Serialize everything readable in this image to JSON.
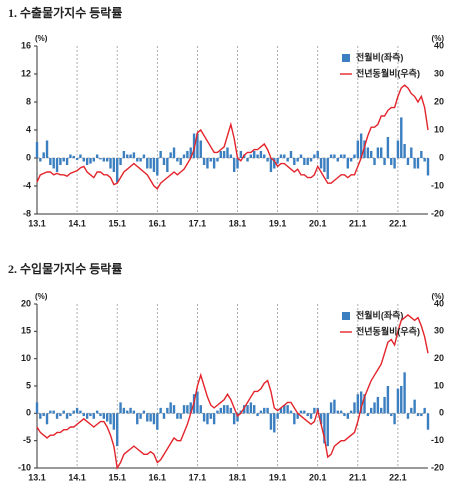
{
  "chart_data": [
    {
      "type": "bar",
      "title": "1. 수출물가지수 등락률",
      "y_unit": "(%)",
      "y2_unit": "(%)",
      "ylim": [
        -8,
        16
      ],
      "yticks": [
        -8,
        -4,
        0,
        4,
        8,
        12,
        16
      ],
      "y2lim": [
        -20,
        40
      ],
      "y2ticks": [
        -20,
        -10,
        0,
        10,
        20,
        30,
        40
      ],
      "legend": "top-right",
      "categories": [
        "13.1",
        null,
        null,
        null,
        null,
        null,
        null,
        null,
        null,
        null,
        null,
        null,
        "14.1",
        null,
        null,
        null,
        null,
        null,
        null,
        null,
        null,
        null,
        null,
        null,
        "15.1",
        null,
        null,
        null,
        null,
        null,
        null,
        null,
        null,
        null,
        null,
        null,
        "16.1",
        null,
        null,
        null,
        null,
        null,
        null,
        null,
        null,
        null,
        null,
        null,
        "17.1",
        null,
        null,
        null,
        null,
        null,
        null,
        null,
        null,
        null,
        null,
        null,
        "18.1",
        null,
        null,
        null,
        null,
        null,
        null,
        null,
        null,
        null,
        null,
        null,
        "19.1",
        null,
        null,
        null,
        null,
        null,
        null,
        null,
        null,
        null,
        null,
        null,
        "20.1",
        null,
        null,
        null,
        null,
        null,
        null,
        null,
        null,
        null,
        null,
        null,
        "21.1",
        null,
        null,
        null,
        null,
        null,
        null,
        null,
        null,
        null,
        null,
        null,
        "22.1",
        null,
        null,
        null,
        null,
        null,
        null,
        null,
        null,
        null
      ],
      "series": [
        {
          "name": "전월비(좌측)",
          "type": "bar",
          "color": "#3b7fc0",
          "values": [
            2.3,
            -0.5,
            0.8,
            2.5,
            -1,
            -1.5,
            -2,
            -1,
            -0.5,
            -1,
            0.5,
            0.3,
            -0.3,
            0.5,
            -0.5,
            -1,
            -0.8,
            -0.5,
            0.5,
            -0.2,
            -0.5,
            -0.5,
            -1.5,
            -2,
            -3.5,
            -1,
            1,
            0.5,
            0.5,
            0.8,
            -0.5,
            -0.5,
            0.5,
            -1.5,
            -1.5,
            -2,
            -2.5,
            1,
            -1,
            -2,
            0.8,
            1.5,
            -0.5,
            -1,
            0.5,
            1,
            1.5,
            3.5,
            3.5,
            2.5,
            -1,
            -1.5,
            -0.5,
            -1.5,
            -0.5,
            1,
            1,
            1.5,
            0.5,
            -2,
            -1.5,
            1,
            0.5,
            -0.5,
            0.5,
            1,
            0.5,
            1,
            0.5,
            -0.5,
            -2,
            -1.5,
            -0.8,
            0.5,
            0.5,
            -0.5,
            1,
            -1,
            -0.5,
            0.5,
            -1,
            -1,
            -0.5,
            0.5,
            1,
            -1.5,
            -2,
            -3,
            0.5,
            0.5,
            -0.5,
            0.5,
            0.5,
            -1.5,
            -0.5,
            0.5,
            2.5,
            3.5,
            2.5,
            1.5,
            1,
            -1,
            1.5,
            1.5,
            -1,
            3,
            -1,
            -1.5,
            2.5,
            5.8,
            2,
            -1,
            1.5,
            -1.5,
            -1.5,
            1,
            -0.5,
            -2.5
          ]
        },
        {
          "name": "전년동월비(우측)",
          "type": "line",
          "axis": "y2",
          "color": "#e3242b",
          "values": [
            -8.6,
            -6,
            -5.5,
            -5,
            -5,
            -6,
            -5.5,
            -6,
            -6,
            -6.5,
            -5.5,
            -5,
            -4.5,
            -3.5,
            -3,
            -5,
            -6,
            -7,
            -5,
            -5,
            -6,
            -6,
            -7,
            -9.5,
            -9,
            -7,
            -5,
            -4,
            -3,
            -2,
            -3,
            -4,
            -5,
            -6,
            -8,
            -10,
            -11,
            -9,
            -8,
            -7,
            -6,
            -5,
            -6,
            -5,
            -4,
            -2,
            0,
            3,
            9,
            10,
            8,
            6,
            4,
            2,
            2,
            3,
            4,
            8,
            12,
            7,
            0,
            -1,
            1,
            2,
            2,
            3,
            3,
            4,
            5,
            3,
            0,
            -1,
            -3,
            -2,
            -2,
            -3,
            -4,
            -5,
            -4,
            -6,
            -6,
            -7,
            -7,
            -6,
            -3,
            -5,
            -7,
            -9,
            -9,
            -8,
            -7,
            -6,
            -6,
            -7,
            -6,
            -6,
            -3,
            0,
            4,
            8,
            11,
            11,
            12,
            15,
            15,
            17,
            18,
            18,
            22,
            25,
            26,
            25,
            23,
            22,
            20,
            22,
            18,
            10
          ]
        }
      ]
    },
    {
      "type": "bar",
      "title": "2. 수입물가지수 등락률",
      "y_unit": "(%)",
      "y2_unit": "(%)",
      "ylim": [
        -10,
        20
      ],
      "yticks": [
        -10,
        -5,
        0,
        5,
        10,
        15,
        20
      ],
      "y2lim": [
        -20,
        40
      ],
      "y2ticks": [
        -20,
        -10,
        0,
        10,
        20,
        30,
        40
      ],
      "legend": "top-right",
      "categories": [
        "13.1",
        null,
        null,
        null,
        null,
        null,
        null,
        null,
        null,
        null,
        null,
        null,
        "14.1",
        null,
        null,
        null,
        null,
        null,
        null,
        null,
        null,
        null,
        null,
        null,
        "15.1",
        null,
        null,
        null,
        null,
        null,
        null,
        null,
        null,
        null,
        null,
        null,
        "16.1",
        null,
        null,
        null,
        null,
        null,
        null,
        null,
        null,
        null,
        null,
        null,
        "17.1",
        null,
        null,
        null,
        null,
        null,
        null,
        null,
        null,
        null,
        null,
        null,
        "18.1",
        null,
        null,
        null,
        null,
        null,
        null,
        null,
        null,
        null,
        null,
        null,
        "19.1",
        null,
        null,
        null,
        null,
        null,
        null,
        null,
        null,
        null,
        null,
        null,
        "20.1",
        null,
        null,
        null,
        null,
        null,
        null,
        null,
        null,
        null,
        null,
        null,
        "21.1",
        null,
        null,
        null,
        null,
        null,
        null,
        null,
        null,
        null,
        null,
        null,
        "22.1",
        null,
        null,
        null,
        null,
        null,
        null,
        null,
        null,
        null
      ],
      "series": [
        {
          "name": "전월비(좌측)",
          "type": "bar",
          "color": "#3b7fc0",
          "values": [
            2,
            -1,
            -0.5,
            -2,
            0.5,
            0.5,
            -1,
            -0.5,
            0.5,
            -1,
            -0.5,
            0.5,
            1,
            0.5,
            -0.5,
            -1,
            -0.5,
            -1,
            0.5,
            -0.5,
            -1,
            -1.5,
            -2,
            -3,
            -6,
            2,
            1,
            0.5,
            1,
            0.5,
            -2,
            -1,
            0.5,
            -1.5,
            -1.5,
            -2,
            -3,
            1,
            -1,
            1,
            2,
            1.5,
            -1,
            -1,
            1.5,
            1.5,
            2,
            3.5,
            4,
            1.5,
            -1.5,
            -2,
            -1,
            -2,
            0.5,
            1,
            1.5,
            1.5,
            1,
            -2,
            -1.5,
            0.5,
            1.5,
            1.5,
            2,
            1.5,
            -0.5,
            0.5,
            1,
            1,
            -3,
            -3.5,
            -1,
            1,
            1.5,
            1.5,
            0.5,
            -2,
            -1,
            0.5,
            0.5,
            -0.5,
            -1,
            1,
            1,
            -2,
            -5.5,
            -6,
            2,
            2.5,
            0.5,
            0.5,
            -0.5,
            -1,
            0.5,
            2,
            3.5,
            4,
            3.5,
            -0.5,
            1,
            2,
            3,
            1,
            3,
            5,
            -0.5,
            -2,
            4.5,
            5,
            7.5,
            -1,
            1,
            2.5,
            -0.5,
            -0.5,
            1,
            -3
          ]
        },
        {
          "name": "전년동월비(우측)",
          "type": "line",
          "axis": "y2",
          "color": "#e3242b",
          "values": [
            -5,
            -7,
            -8,
            -9,
            -8,
            -8,
            -7,
            -7,
            -6,
            -6,
            -5,
            -5,
            -4,
            -3,
            -2,
            -3,
            -4,
            -5,
            -4,
            -3,
            -3,
            -5,
            -8,
            -12,
            -20,
            -18,
            -15,
            -14,
            -13,
            -12,
            -13,
            -14,
            -15,
            -15,
            -14,
            -15,
            -18,
            -17,
            -15,
            -13,
            -11,
            -9,
            -10,
            -10,
            -7,
            -4,
            0,
            4,
            10,
            14,
            10,
            6,
            3,
            2,
            3,
            4,
            5,
            7,
            5,
            2,
            -1,
            0,
            2,
            4,
            6,
            8,
            8,
            9,
            11,
            12,
            8,
            2,
            1,
            2,
            3,
            4,
            4,
            2,
            0,
            -1,
            -2,
            -3,
            -4,
            -3,
            1,
            -4,
            -9,
            -16,
            -15,
            -12,
            -11,
            -10,
            -10,
            -9,
            -8,
            -7,
            -3,
            2,
            6,
            9,
            12,
            14,
            16,
            18,
            22,
            26,
            27,
            25,
            30,
            34,
            35,
            36,
            35,
            34,
            35,
            32,
            28,
            22
          ]
        }
      ]
    }
  ]
}
